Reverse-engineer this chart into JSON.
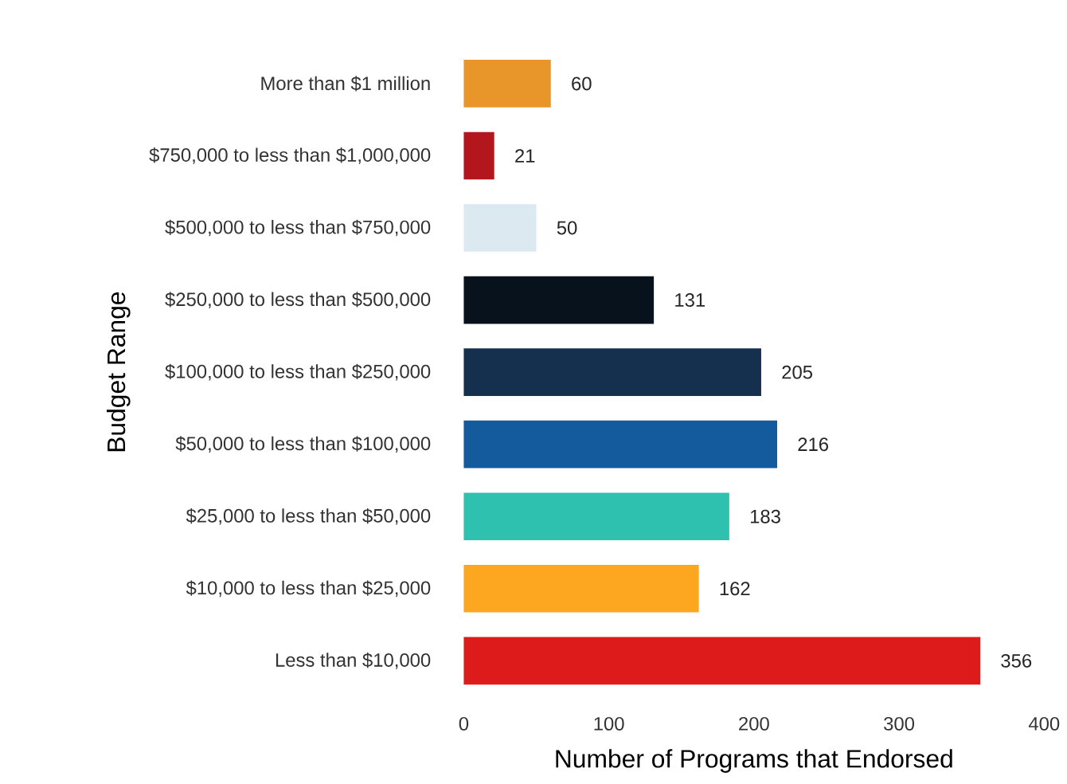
{
  "chart_data": {
    "type": "bar",
    "orientation": "horizontal",
    "xlabel": "Number of Programs that Endorsed",
    "ylabel": "Budget Range",
    "categories": [
      "More than $1 million",
      "$750,000 to less than $1,000,000",
      "$500,000 to less than $750,000",
      "$250,000 to less than $500,000",
      "$100,000 to less than $250,000",
      "$50,000 to less than $100,000",
      "$25,000 to less than $50,000",
      "$10,000 to less than $25,000",
      "Less than $10,000"
    ],
    "values": [
      60,
      21,
      50,
      131,
      205,
      216,
      183,
      162,
      356
    ],
    "colors": [
      "#e8962a",
      "#b3161c",
      "#dce9f0",
      "#07121c",
      "#15304f",
      "#135b9c",
      "#2fc1b0",
      "#fda61f",
      "#dd1b1b"
    ],
    "xlim": [
      0,
      400
    ],
    "xticks": [
      0,
      100,
      200,
      300,
      400
    ],
    "data_labels": true
  }
}
